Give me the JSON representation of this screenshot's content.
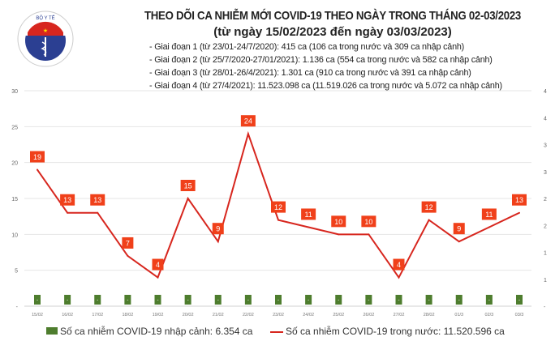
{
  "header": {
    "title": "THEO DÕI CA NHIỄM MỚI COVID-19 THEO NGÀY TRONG THÁNG 02-03/2023",
    "subtitle": "(từ ngày 15/02/2023 đến ngày 03/03/2023)",
    "notes": [
      "- Giai đoạn 1 (từ 23/01-24/7/2020): 415 ca (106 ca trong nước và 309 ca nhập cảnh)",
      "- Giai đoạn 2 (từ 25/7/2020-27/01/2021): 1.136 ca (554 ca trong nước và 582 ca nhập cảnh)",
      "- Giai đoạn 3 (từ 28/01-26/4/2021): 1.301 ca (910 ca trong nước và 391 ca nhập cảnh)",
      "- Giai đoạn 4 (từ 27/4/2021): 11.523.098 ca (11.519.026 ca trong nước và 5.072 ca nhập cảnh)"
    ],
    "logo_text": "BỘ Y TẾ · MINISTRY OF HEALTH"
  },
  "chart_data": {
    "type": "bar+line",
    "categories": [
      "15/02",
      "16/02",
      "17/02",
      "18/02",
      "19/02",
      "20/02",
      "21/02",
      "22/02",
      "23/02",
      "24/02",
      "25/02",
      "26/02",
      "27/02",
      "28/02",
      "01/3",
      "02/3",
      "03/3"
    ],
    "series": [
      {
        "name": "Số ca nhiễm COVID-19 nhập cảnh: 6.354 ca",
        "type": "bar",
        "axis": "right",
        "color": "#4e7d2e",
        "values": [
          0,
          0,
          0,
          0,
          0,
          0,
          0,
          0,
          0,
          0,
          0,
          0,
          0,
          0,
          0,
          0,
          0
        ],
        "labels": [
          "-",
          "-",
          "-",
          "-",
          "-",
          "-",
          "-",
          "-",
          "-",
          "-",
          "-",
          "-",
          "-",
          "-",
          "-",
          "-",
          "-"
        ]
      },
      {
        "name": "Số ca nhiễm COVID-19 trong nước: 11.520.596 ca",
        "type": "line",
        "axis": "left",
        "color": "#d7261e",
        "label_color": "#f0401a",
        "values": [
          19,
          13,
          13,
          7,
          4,
          15,
          9,
          24,
          12,
          11,
          10,
          10,
          4,
          12,
          9,
          11,
          13
        ]
      }
    ],
    "left_axis": {
      "ylim": [
        0,
        30
      ],
      "ticks": [
        "-",
        "5",
        "10",
        "15",
        "20",
        "25",
        "30"
      ]
    },
    "right_axis": {
      "ylim": [
        0,
        4
      ],
      "ticks": [
        "-",
        "1",
        "1",
        "2",
        "2",
        "3",
        "3",
        "4",
        "4"
      ]
    },
    "grid": true,
    "legend": "bottom"
  }
}
